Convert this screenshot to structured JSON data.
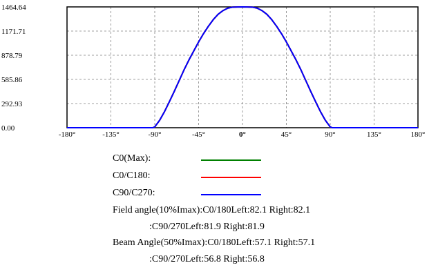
{
  "chart_data": {
    "type": "line",
    "title": "",
    "xlabel": "",
    "ylabel": "",
    "xlim": [
      -180,
      180
    ],
    "ylim": [
      0,
      1464.64
    ],
    "x_ticks": [
      -180,
      -135,
      -90,
      -45,
      0,
      45,
      90,
      135,
      180
    ],
    "x_tick_labels": [
      "-180°",
      "-135°",
      "-90°",
      "-45°",
      "0°",
      "45°",
      "90°",
      "135°",
      "180°"
    ],
    "y_tick_labels": [
      "1464.64",
      "1171.71",
      "878.79",
      "585.86",
      "292.93",
      "0.00"
    ],
    "y_ticks": [
      1464.64,
      1171.71,
      878.79,
      585.86,
      292.93,
      0.0
    ],
    "grid": true,
    "x": [
      -180,
      -135,
      -92,
      -90,
      -85,
      -80,
      -75,
      -70,
      -65,
      -60,
      -55,
      -50,
      -45,
      -40,
      -35,
      -30,
      -25,
      -20,
      -15,
      -10,
      -5,
      0,
      5,
      10,
      15,
      20,
      25,
      30,
      35,
      40,
      45,
      50,
      55,
      60,
      65,
      70,
      75,
      80,
      85,
      90,
      92,
      135,
      180
    ],
    "series": [
      {
        "name": "C0(Max):",
        "color": "#008000",
        "values": [
          0,
          0,
          0,
          10,
          90,
          195,
          315,
          440,
          570,
          700,
          820,
          930,
          1040,
          1140,
          1230,
          1310,
          1375,
          1420,
          1450,
          1462,
          1464,
          1464.64,
          1464,
          1462,
          1450,
          1420,
          1375,
          1310,
          1230,
          1140,
          1040,
          930,
          820,
          700,
          570,
          440,
          315,
          195,
          90,
          10,
          0,
          0,
          0
        ]
      },
      {
        "name": "C0/C180:",
        "color": "#ff0000",
        "values": [
          0,
          0,
          0,
          10,
          90,
          195,
          315,
          440,
          570,
          700,
          820,
          930,
          1040,
          1140,
          1230,
          1310,
          1375,
          1420,
          1450,
          1462,
          1464,
          1464.64,
          1464,
          1462,
          1450,
          1420,
          1375,
          1310,
          1230,
          1140,
          1040,
          930,
          820,
          700,
          570,
          440,
          315,
          195,
          90,
          10,
          0,
          0,
          0
        ]
      },
      {
        "name": "C90/C270:",
        "color": "#0000ff",
        "values": [
          0,
          0,
          0,
          10,
          90,
          195,
          315,
          440,
          570,
          700,
          820,
          930,
          1040,
          1140,
          1230,
          1310,
          1375,
          1420,
          1450,
          1462,
          1464,
          1464.64,
          1464,
          1462,
          1450,
          1420,
          1375,
          1310,
          1230,
          1140,
          1040,
          930,
          820,
          700,
          570,
          440,
          315,
          195,
          90,
          10,
          0,
          0,
          0
        ]
      }
    ]
  },
  "notes": {
    "field_c0": "Field angle(10%Imax):C0/180Left:82.1 Right:82.1",
    "field_c90": ":C90/270Left:81.9 Right:81.9",
    "beam_c0": "Beam Angle(50%Imax):C0/180Left:57.1 Right:57.1",
    "beam_c90": ":C90/270Left:56.8 Right:56.8"
  }
}
